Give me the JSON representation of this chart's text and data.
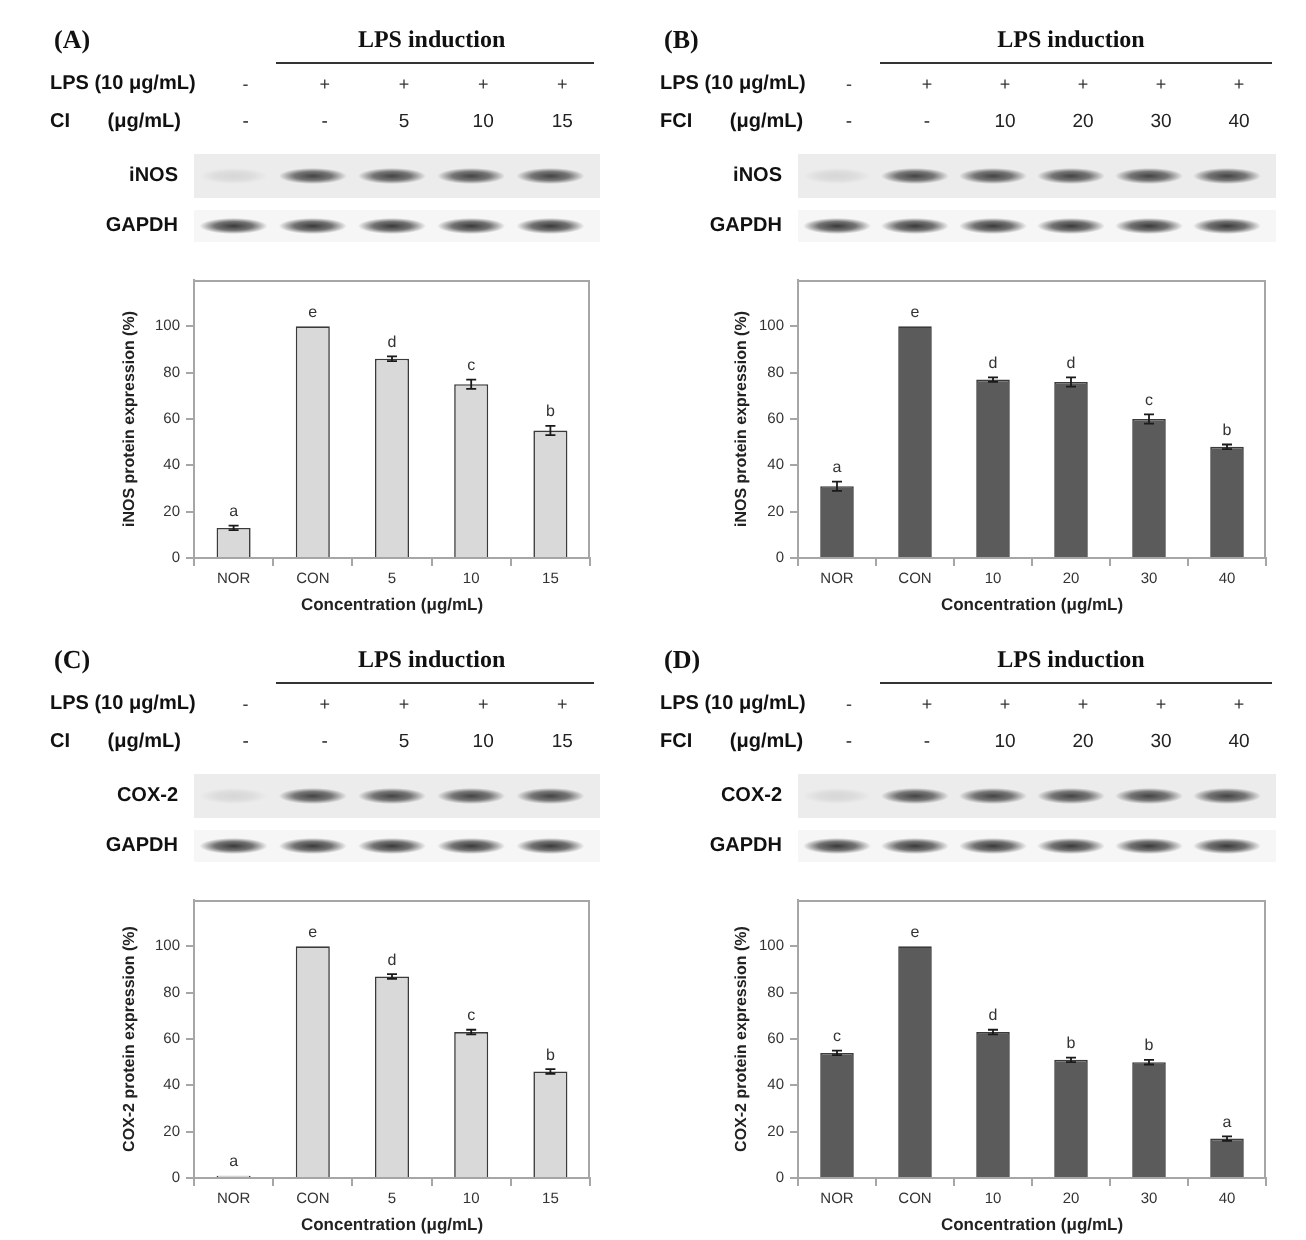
{
  "chart_data": [
    {
      "type": "bar",
      "title": "(A)",
      "categories": [
        "NOR",
        "CON",
        "5",
        "10",
        "15"
      ],
      "values": [
        13,
        100,
        86,
        75,
        55
      ],
      "errors": [
        1,
        null,
        1,
        2,
        2
      ],
      "value_labels": [
        "a",
        "e",
        "d",
        "c",
        "b"
      ],
      "color": "#d9d9d9",
      "xlabel": "Concentration (μg/mL)",
      "ylabel": "iNOS protein expression (%)",
      "ylim": [
        0,
        120
      ],
      "yticks": [
        0,
        20,
        40,
        60,
        80,
        100
      ],
      "annotations": [
        "LPS induction",
        "LPS (10 μg/mL)",
        "-",
        "+",
        "+",
        "+",
        "+",
        "CI (μg/mL)",
        "-",
        "-",
        "5",
        "10",
        "15",
        "iNOS",
        "GAPDH"
      ]
    },
    {
      "type": "bar",
      "title": "(B)",
      "categories": [
        "NOR",
        "CON",
        "10",
        "20",
        "30",
        "40"
      ],
      "values": [
        31,
        100,
        77,
        76,
        60,
        48
      ],
      "errors": [
        2,
        null,
        1,
        2,
        2,
        1
      ],
      "value_labels": [
        "a",
        "e",
        "d",
        "d",
        "c",
        "b"
      ],
      "color": "#5b5b5b",
      "xlabel": "Concentration (μg/mL)",
      "ylabel": "iNOS protein expression (%)",
      "ylim": [
        0,
        120
      ],
      "yticks": [
        0,
        20,
        40,
        60,
        80,
        100
      ],
      "annotations": [
        "LPS induction",
        "LPS (10 μg/mL)",
        "-",
        "+",
        "+",
        "+",
        "+",
        "+",
        "FCI (μg/mL)",
        "-",
        "-",
        "10",
        "20",
        "30",
        "40",
        "iNOS",
        "GAPDH"
      ]
    },
    {
      "type": "bar",
      "title": "(C)",
      "categories": [
        "NOR",
        "CON",
        "5",
        "10",
        "15"
      ],
      "values": [
        1,
        100,
        87,
        63,
        46
      ],
      "errors": [
        null,
        null,
        1,
        1,
        1
      ],
      "value_labels": [
        "a",
        "e",
        "d",
        "c",
        "b"
      ],
      "color": "#d9d9d9",
      "xlabel": "Concentration (μg/mL)",
      "ylabel": "COX-2 protein expression (%)",
      "ylim": [
        0,
        120
      ],
      "yticks": [
        0,
        20,
        40,
        60,
        80,
        100
      ],
      "annotations": [
        "LPS induction",
        "LPS (10 μg/mL)",
        "-",
        "+",
        "+",
        "+",
        "+",
        "CI (μg/mL)",
        "-",
        "-",
        "5",
        "10",
        "15",
        "COX-2",
        "GAPDH"
      ]
    },
    {
      "type": "bar",
      "title": "(D)",
      "categories": [
        "NOR",
        "CON",
        "10",
        "20",
        "30",
        "40"
      ],
      "values": [
        54,
        100,
        63,
        51,
        50,
        17
      ],
      "errors": [
        1,
        null,
        1,
        1,
        1,
        1
      ],
      "value_labels": [
        "c",
        "e",
        "d",
        "b",
        "b",
        "a"
      ],
      "color": "#5b5b5b",
      "xlabel": "Concentration (μg/mL)",
      "ylabel": "COX-2 protein expression (%)",
      "ylim": [
        0,
        120
      ],
      "yticks": [
        0,
        20,
        40,
        60,
        80,
        100
      ],
      "annotations": [
        "LPS induction",
        "LPS (10 μg/mL)",
        "-",
        "+",
        "+",
        "+",
        "+",
        "+",
        "FCI (μg/mL)",
        "-",
        "-",
        "10",
        "20",
        "30",
        "40",
        "COX-2",
        "GAPDH"
      ]
    }
  ]
}
